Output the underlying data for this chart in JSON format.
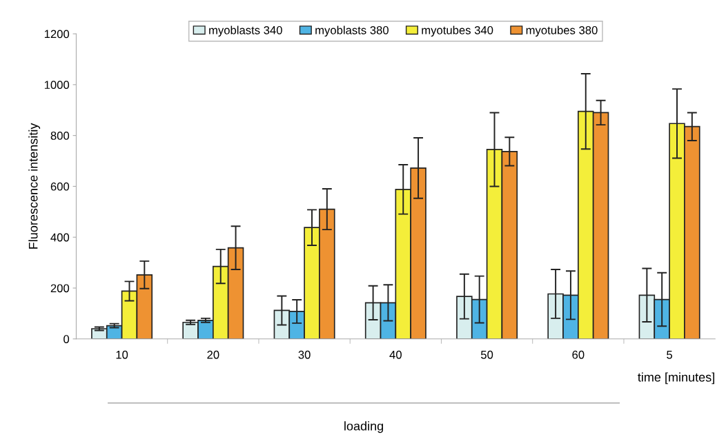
{
  "chart_data": {
    "type": "bar",
    "ylabel": "Fluorescence intensitiy",
    "categories": [
      "10",
      "20",
      "30",
      "40",
      "50",
      "60",
      "5"
    ],
    "series": [
      {
        "name": "myoblasts 340",
        "color": "#d8eeee",
        "values": [
          40,
          65,
          112,
          142,
          167,
          177,
          172
        ],
        "errors": [
          7,
          8,
          57,
          67,
          88,
          96,
          105
        ]
      },
      {
        "name": "myoblasts 380",
        "color": "#4fb4e4",
        "values": [
          52,
          73,
          108,
          142,
          155,
          172,
          155
        ],
        "errors": [
          8,
          8,
          46,
          71,
          92,
          95,
          105
        ]
      },
      {
        "name": "myotubes 340",
        "color": "#f4ee3a",
        "values": [
          188,
          285,
          438,
          588,
          745,
          895,
          847
        ],
        "errors": [
          38,
          67,
          70,
          97,
          145,
          148,
          136
        ]
      },
      {
        "name": "myotubes 380",
        "color": "#ee9232",
        "values": [
          252,
          358,
          510,
          672,
          737,
          890,
          835
        ],
        "errors": [
          54,
          85,
          80,
          119,
          56,
          48,
          55
        ]
      }
    ],
    "ylim": [
      0,
      1200
    ],
    "yticks": [
      0,
      200,
      400,
      600,
      800,
      1000,
      1200
    ],
    "grid": false,
    "legend": "top",
    "annotations": [
      "time [minutes]",
      "loading"
    ]
  }
}
